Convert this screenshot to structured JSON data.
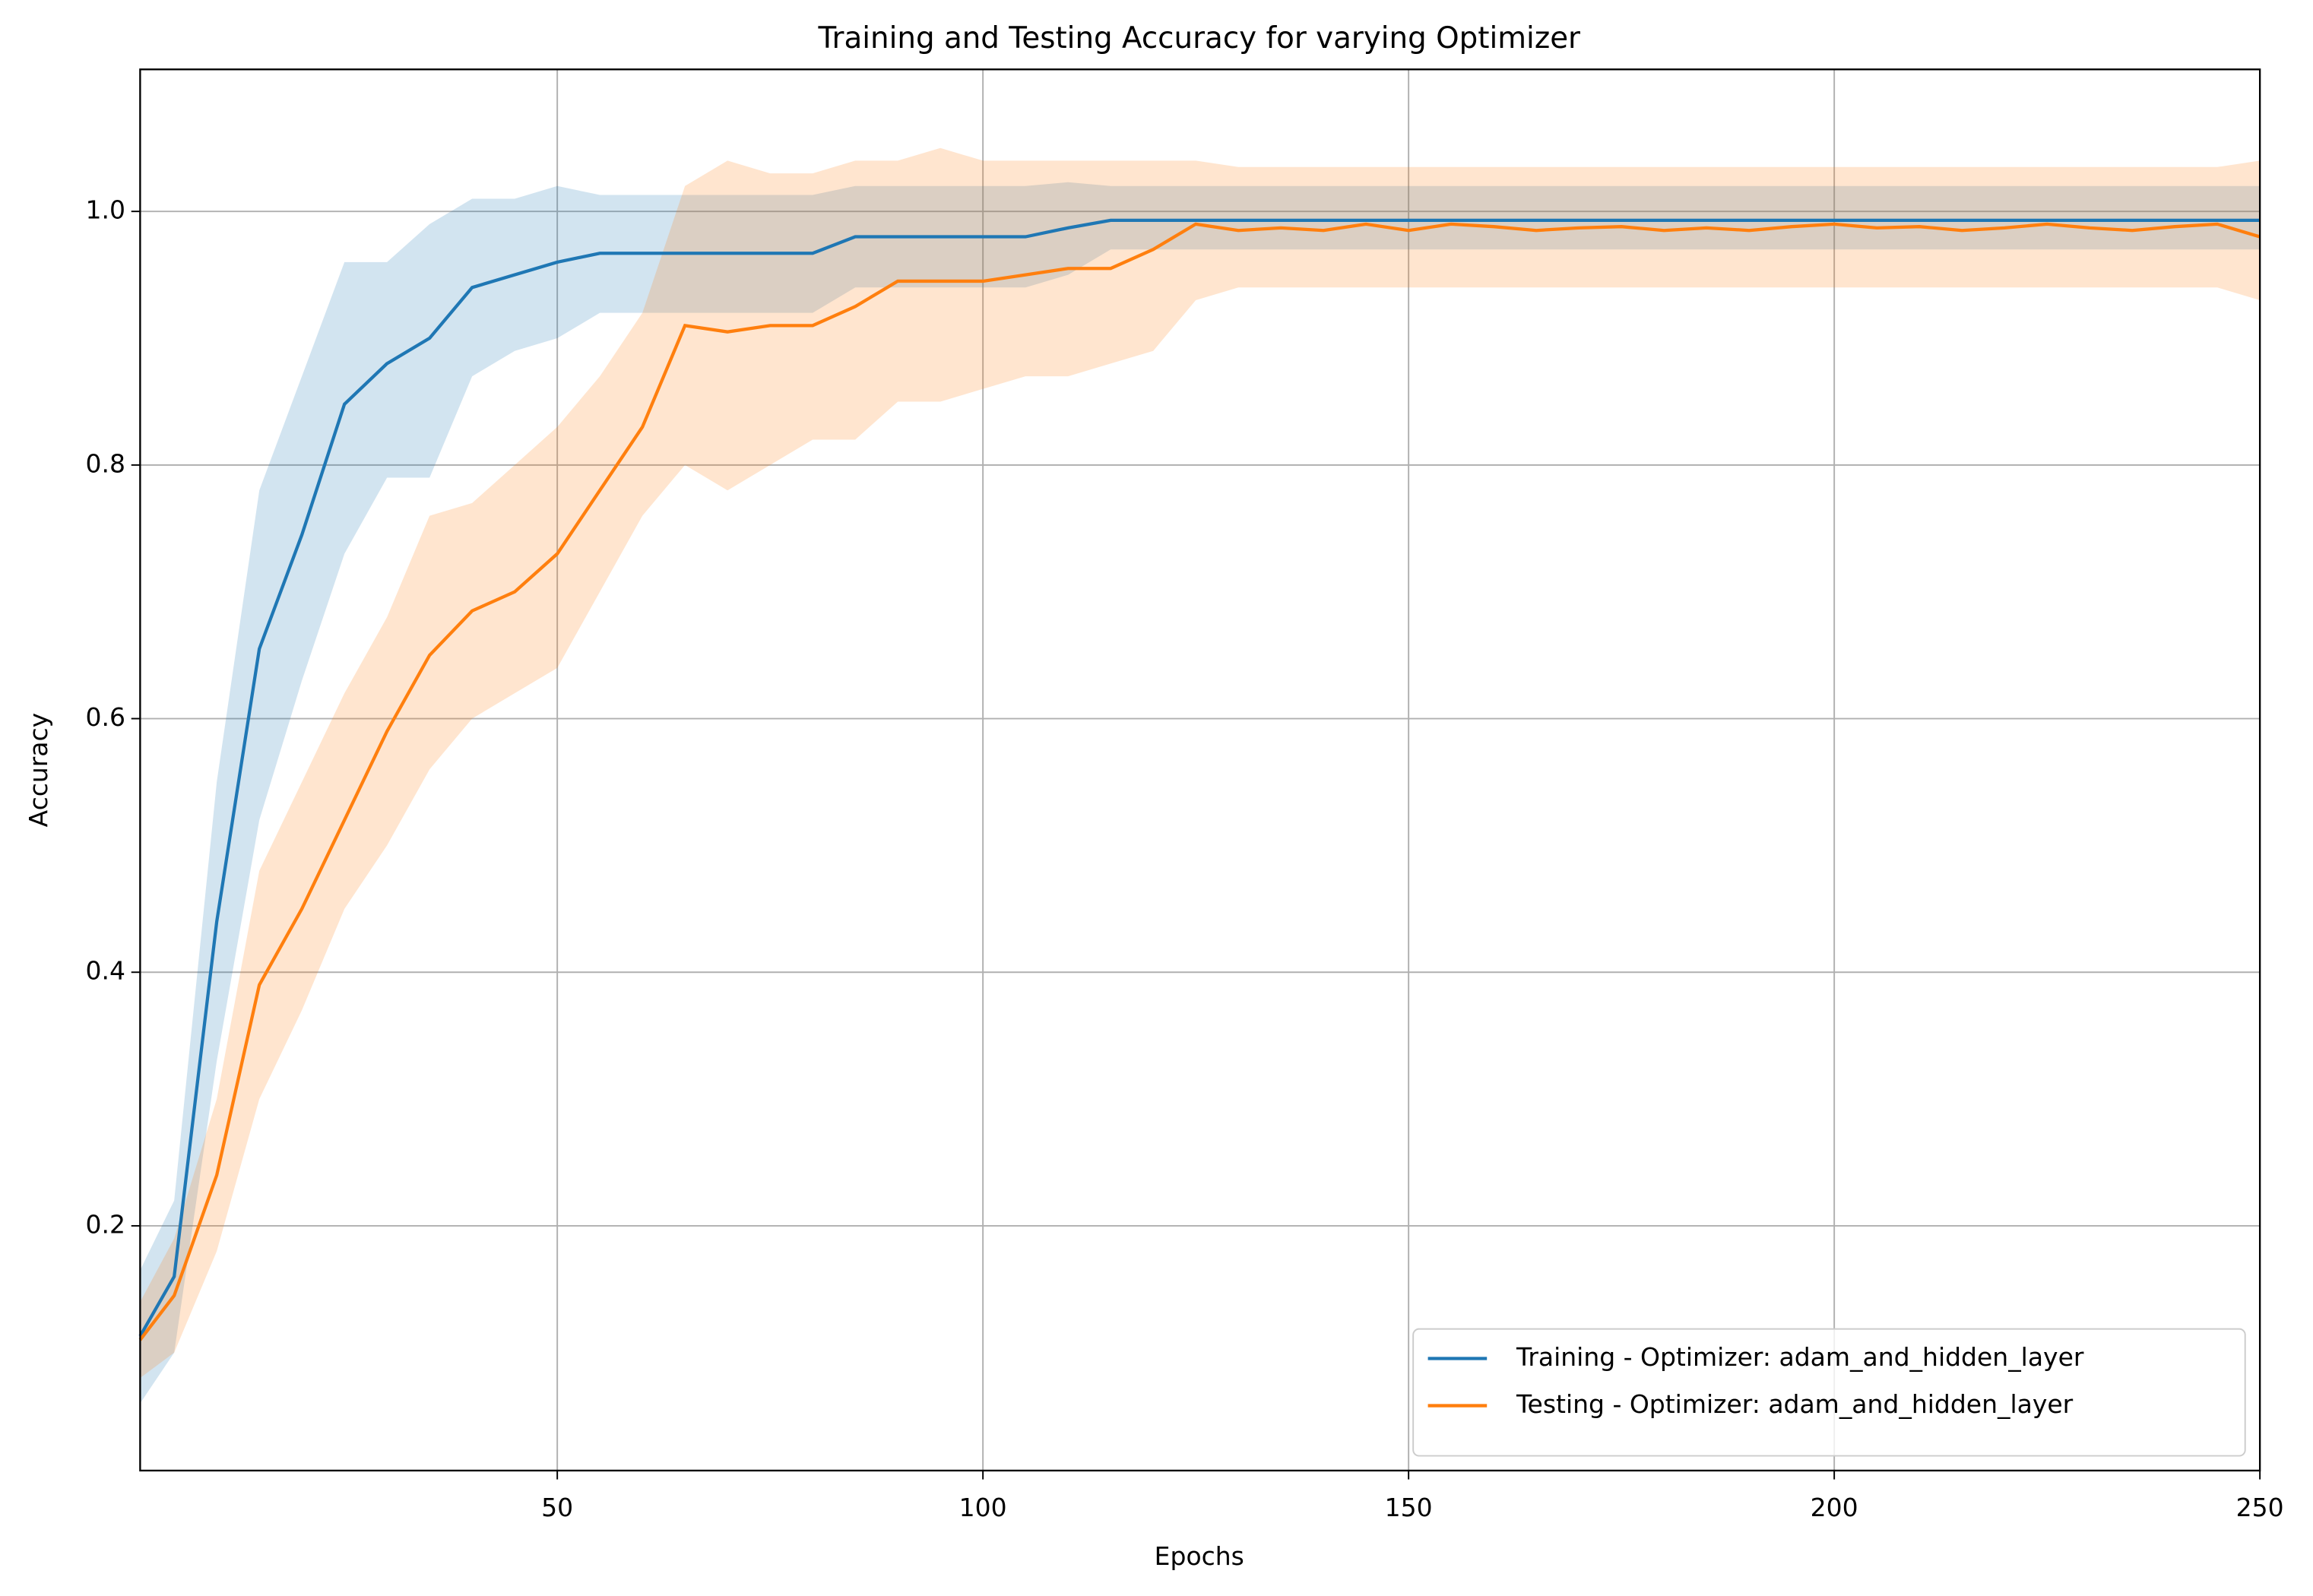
{
  "chart_data": {
    "type": "line",
    "title": "Training and Testing Accuracy for varying Optimizer",
    "x_label": "Epochs",
    "y_label": "Accuracy",
    "x": [
      1,
      5,
      10,
      15,
      20,
      25,
      30,
      35,
      40,
      45,
      50,
      55,
      60,
      65,
      70,
      75,
      80,
      85,
      90,
      95,
      100,
      105,
      110,
      115,
      120,
      125,
      130,
      135,
      140,
      145,
      150,
      155,
      160,
      165,
      170,
      175,
      180,
      185,
      190,
      195,
      200,
      205,
      210,
      215,
      220,
      225,
      230,
      235,
      240,
      245,
      250
    ],
    "series": [
      {
        "name": "Training - Optimizer: adam_and_hidden_layer",
        "color": "#1f77b4",
        "values": [
          0.113,
          0.16,
          0.44,
          0.655,
          0.745,
          0.848,
          0.88,
          0.9,
          0.94,
          0.95,
          0.96,
          0.967,
          0.967,
          0.967,
          0.967,
          0.967,
          0.967,
          0.98,
          0.98,
          0.98,
          0.98,
          0.98,
          0.987,
          0.993,
          0.993,
          0.993,
          0.993,
          0.993,
          0.993,
          0.993,
          0.993,
          0.993,
          0.993,
          0.993,
          0.993,
          0.993,
          0.993,
          0.993,
          0.993,
          0.993,
          0.993,
          0.993,
          0.993,
          0.993,
          0.993,
          0.993,
          0.993,
          0.993,
          0.993,
          0.993,
          0.993
        ],
        "lower": [
          0.06,
          0.1,
          0.33,
          0.52,
          0.63,
          0.73,
          0.79,
          0.79,
          0.87,
          0.89,
          0.9,
          0.92,
          0.92,
          0.92,
          0.92,
          0.92,
          0.92,
          0.94,
          0.94,
          0.94,
          0.94,
          0.94,
          0.95,
          0.97,
          0.97,
          0.97,
          0.97,
          0.97,
          0.97,
          0.97,
          0.97,
          0.97,
          0.97,
          0.97,
          0.97,
          0.97,
          0.97,
          0.97,
          0.97,
          0.97,
          0.97,
          0.97,
          0.97,
          0.97,
          0.97,
          0.97,
          0.97,
          0.97,
          0.97,
          0.97,
          0.97
        ],
        "upper": [
          0.165,
          0.22,
          0.55,
          0.78,
          0.87,
          0.96,
          0.96,
          0.99,
          1.01,
          1.01,
          1.02,
          1.013,
          1.013,
          1.013,
          1.013,
          1.013,
          1.013,
          1.02,
          1.02,
          1.02,
          1.02,
          1.02,
          1.023,
          1.02,
          1.02,
          1.02,
          1.02,
          1.02,
          1.02,
          1.02,
          1.02,
          1.02,
          1.02,
          1.02,
          1.02,
          1.02,
          1.02,
          1.02,
          1.02,
          1.02,
          1.02,
          1.02,
          1.02,
          1.02,
          1.02,
          1.02,
          1.02,
          1.02,
          1.02,
          1.02,
          1.02
        ]
      },
      {
        "name": "Testing - Optimizer: adam_and_hidden_layer",
        "color": "#ff7f0e",
        "values": [
          0.11,
          0.145,
          0.24,
          0.39,
          0.45,
          0.52,
          0.59,
          0.65,
          0.685,
          0.7,
          0.73,
          0.78,
          0.83,
          0.91,
          0.905,
          0.91,
          0.91,
          0.925,
          0.945,
          0.945,
          0.945,
          0.95,
          0.955,
          0.955,
          0.97,
          0.99,
          0.985,
          0.987,
          0.985,
          0.99,
          0.985,
          0.99,
          0.988,
          0.985,
          0.987,
          0.988,
          0.985,
          0.987,
          0.985,
          0.988,
          0.99,
          0.987,
          0.988,
          0.985,
          0.987,
          0.99,
          0.987,
          0.985,
          0.988,
          0.99,
          0.98
        ],
        "lower": [
          0.08,
          0.1,
          0.18,
          0.3,
          0.37,
          0.45,
          0.5,
          0.56,
          0.6,
          0.62,
          0.64,
          0.7,
          0.76,
          0.8,
          0.78,
          0.8,
          0.82,
          0.82,
          0.85,
          0.85,
          0.86,
          0.87,
          0.87,
          0.88,
          0.89,
          0.93,
          0.94,
          0.94,
          0.94,
          0.94,
          0.94,
          0.94,
          0.94,
          0.94,
          0.94,
          0.94,
          0.94,
          0.94,
          0.94,
          0.94,
          0.94,
          0.94,
          0.94,
          0.94,
          0.94,
          0.94,
          0.94,
          0.94,
          0.94,
          0.94,
          0.93
        ],
        "upper": [
          0.14,
          0.19,
          0.3,
          0.48,
          0.55,
          0.62,
          0.68,
          0.76,
          0.77,
          0.8,
          0.83,
          0.87,
          0.92,
          1.02,
          1.04,
          1.03,
          1.03,
          1.04,
          1.04,
          1.05,
          1.04,
          1.04,
          1.04,
          1.04,
          1.04,
          1.04,
          1.035,
          1.035,
          1.035,
          1.035,
          1.035,
          1.035,
          1.035,
          1.035,
          1.035,
          1.035,
          1.035,
          1.035,
          1.035,
          1.035,
          1.035,
          1.035,
          1.035,
          1.035,
          1.035,
          1.035,
          1.035,
          1.035,
          1.035,
          1.035,
          1.04
        ]
      }
    ],
    "xlim": [
      1,
      250
    ],
    "ylim": [
      0.007,
      1.112
    ],
    "xticks": [
      50,
      100,
      150,
      200,
      250
    ],
    "yticks": [
      0.2,
      0.4,
      0.6,
      0.8,
      {
        "value": 1,
        "label": "1.0"
      }
    ],
    "grid": true,
    "band_opacity": 0.2,
    "legend": "lower right"
  }
}
